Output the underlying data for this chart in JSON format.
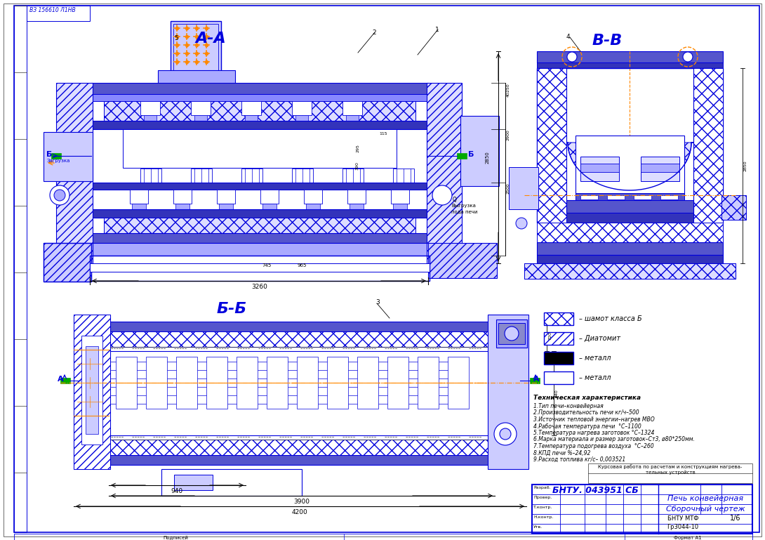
{
  "bg_color": "#ffffff",
  "line_color": "#0000dd",
  "orange_color": "#ff8800",
  "black_color": "#000000",
  "title_top_left": "ВЗ 156610 Л1НВ",
  "section_AA": "А-А",
  "section_BB": "В-В",
  "section_BbBb": "Б-Б",
  "tech_specs_title": "Техническая характеристика",
  "tech_specs": [
    "1.Тип печи–конвейерная",
    "2.Производительность печи кг/ч–500",
    "3.Источник тепловой энергии–нагрев МВО",
    "4.Рабочая температура печи  °С–1100",
    "5.Температура нагрева заготовок °С–1324",
    "6.Марка материала и размер заготовок–Ст3, ø80*250мм.",
    "7.Температура подогрева воздуха  °С–260",
    "8.КПД печи %–24,92",
    "9.Расход топлива кг/с– 0,003521"
  ],
  "stamp_title": "БНТУ. 043951 СБ",
  "stamp_name1": "Печь конвейерная",
  "stamp_name2": "Сборочный чертеж",
  "stamp_org": "БНТУ МТФ",
  "stamp_group": "Гр3044-10",
  "stamp_sheet": "1/6",
  "course_work": "Курсовая работа по расчетам и конструкциям нагрева-\nтельных устройств",
  "dim_3260": "3260",
  "dim_4200": "4200",
  "dim_940": "940",
  "dim_3900": "3900"
}
